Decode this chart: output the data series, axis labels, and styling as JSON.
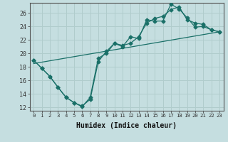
{
  "title": "",
  "xlabel": "Humidex (Indice chaleur)",
  "ylabel": "",
  "background_color": "#c5dee0",
  "grid_color": "#b0cccc",
  "line_color": "#1a7068",
  "xlim": [
    -0.5,
    23.5
  ],
  "ylim": [
    11.5,
    27.5
  ],
  "xticks": [
    0,
    1,
    2,
    3,
    4,
    5,
    6,
    7,
    8,
    9,
    10,
    11,
    12,
    13,
    14,
    15,
    16,
    17,
    18,
    19,
    20,
    21,
    22,
    23
  ],
  "yticks": [
    12,
    14,
    16,
    18,
    20,
    22,
    24,
    26
  ],
  "line1_x": [
    0,
    1,
    2,
    3,
    4,
    5,
    6,
    7,
    8,
    9,
    10,
    11,
    12,
    13,
    14,
    15,
    16,
    17,
    18,
    19,
    20,
    21,
    22,
    23
  ],
  "line1_y": [
    19.0,
    17.8,
    16.6,
    15.0,
    13.5,
    12.7,
    12.1,
    13.5,
    19.3,
    20.0,
    21.5,
    21.0,
    22.5,
    22.2,
    25.0,
    24.8,
    24.8,
    27.3,
    26.6,
    25.3,
    23.9,
    24.0,
    23.5,
    23.2
  ],
  "line2_x": [
    0,
    1,
    2,
    3,
    4,
    5,
    6,
    7,
    8,
    9,
    10,
    11,
    12,
    13,
    14,
    15,
    16,
    17,
    18,
    19,
    20,
    21,
    22,
    23
  ],
  "line2_y": [
    19.0,
    17.8,
    16.6,
    15.0,
    13.5,
    12.7,
    12.2,
    13.2,
    18.8,
    20.3,
    21.5,
    21.2,
    21.5,
    22.5,
    24.5,
    25.2,
    25.5,
    26.5,
    26.9,
    25.0,
    24.5,
    24.3,
    23.5,
    23.2
  ],
  "line3_x": [
    0,
    23
  ],
  "line3_y": [
    18.5,
    23.2
  ]
}
